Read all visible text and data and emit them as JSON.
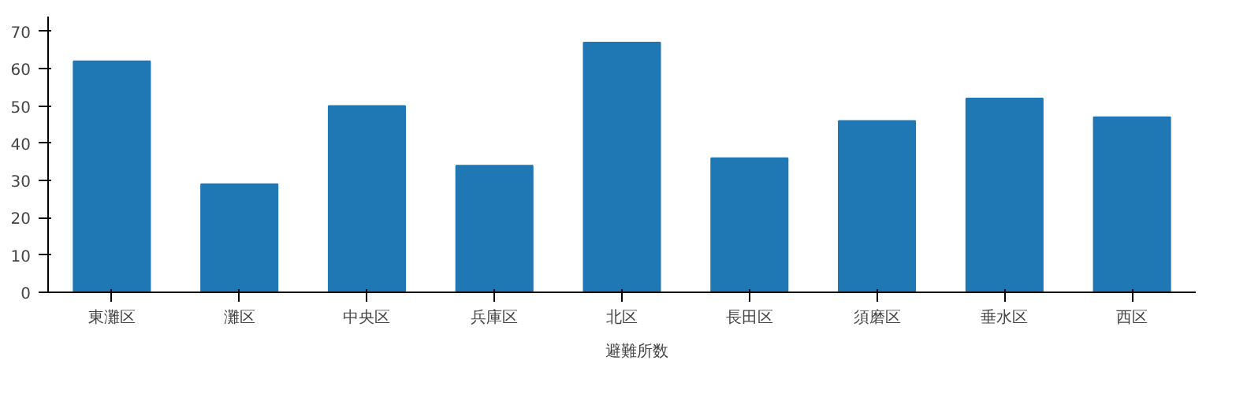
{
  "chart_data": {
    "type": "bar",
    "categories": [
      "東灘区",
      "灘区",
      "中央区",
      "兵庫区",
      "北区",
      "長田区",
      "須磨区",
      "垂水区",
      "西区"
    ],
    "series": [
      {
        "name": "避難所数",
        "color": "#1f77b4",
        "values": [
          62,
          29,
          50,
          34,
          67,
          36,
          46,
          52,
          47
        ]
      }
    ],
    "ylim": [
      0,
      74
    ],
    "yticks": [
      0,
      10,
      20,
      30,
      40,
      50,
      60,
      70
    ],
    "grid": false,
    "legend": "bottom"
  }
}
